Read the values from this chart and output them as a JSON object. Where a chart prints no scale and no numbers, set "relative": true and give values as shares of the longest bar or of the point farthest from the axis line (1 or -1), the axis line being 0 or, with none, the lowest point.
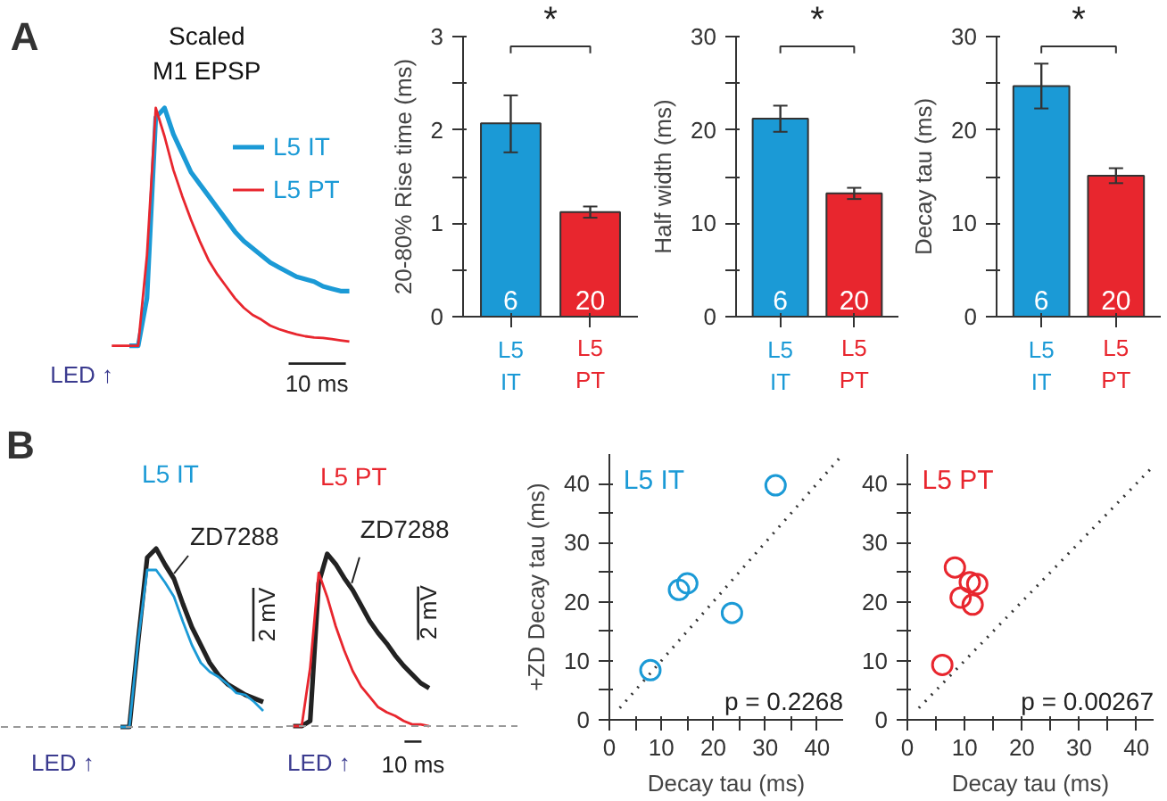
{
  "chart_data": [
    {
      "type": "line",
      "relative": true,
      "title": "Scaled M1 EPSP",
      "legend": "top right",
      "categories": [
        null,
        null,
        null,
        null,
        null,
        null,
        null,
        null,
        null,
        null,
        null,
        null,
        null,
        null,
        null,
        null,
        null,
        null,
        null,
        null,
        null,
        null,
        null,
        null,
        null,
        null,
        null,
        null
      ],
      "series": [
        {
          "name": "L5 IT",
          "color": "#1b9ad6",
          "values": [
            null,
            null,
            0,
            0,
            0.2,
            0.96,
            1.0,
            0.89,
            0.81,
            0.73,
            0.68,
            0.63,
            0.58,
            0.53,
            0.48,
            0.44,
            0.41,
            0.38,
            0.35,
            0.33,
            0.31,
            0.29,
            0.28,
            0.27,
            0.25,
            0.24,
            0.23,
            0.23
          ]
        },
        {
          "name": "L5 PT",
          "color": "#e8262e",
          "values": [
            0,
            0,
            0,
            0,
            0.38,
            1.0,
            0.88,
            0.74,
            0.63,
            0.53,
            0.44,
            0.36,
            0.3,
            0.25,
            0.2,
            0.16,
            0.13,
            0.11,
            0.085,
            0.07,
            0.058,
            0.048,
            0.04,
            0.035,
            0.033,
            0.028,
            0.023,
            0.018
          ]
        }
      ],
      "annotations": [
        "A",
        "LED ↑",
        "10 ms"
      ]
    },
    {
      "type": "bar",
      "categories": [
        "L5 IT",
        "L5 PT"
      ],
      "values": [
        2.07,
        1.12
      ],
      "colors": [
        "#1b9ad6",
        "#e8262e"
      ],
      "errors": [
        [
          1.76,
          2.37
        ],
        [
          1.06,
          1.18
        ]
      ],
      "ylabel": "20-80% Rise time (ms)",
      "ylim": [
        0,
        3
      ],
      "yticks": [
        0,
        {
          "value": 0.5,
          "label": null
        },
        1,
        {
          "value": 1.5,
          "label": null
        },
        2,
        {
          "value": 2.5,
          "label": null
        },
        3
      ],
      "annotations": [
        "*",
        "6",
        "20"
      ]
    },
    {
      "type": "bar",
      "categories": [
        "L5 IT",
        "L5 PT"
      ],
      "values": [
        21.2,
        13.2
      ],
      "colors": [
        "#1b9ad6",
        "#e8262e"
      ],
      "errors": [
        [
          19.8,
          22.6
        ],
        [
          12.6,
          13.8
        ]
      ],
      "ylabel": "Half width (ms)",
      "ylim": [
        0,
        30
      ],
      "yticks": [
        0,
        {
          "value": 5,
          "label": null
        },
        10,
        {
          "value": 15,
          "label": null
        },
        20,
        {
          "value": 25,
          "label": null
        },
        30
      ],
      "annotations": [
        "*",
        "6",
        "20"
      ]
    },
    {
      "type": "bar",
      "categories": [
        "L5 IT",
        "L5 PT"
      ],
      "values": [
        24.7,
        15.1
      ],
      "colors": [
        "#1b9ad6",
        "#e8262e"
      ],
      "errors": [
        [
          22.3,
          27.1
        ],
        [
          14.3,
          15.9
        ]
      ],
      "ylabel": "Decay tau (ms)",
      "ylim": [
        0,
        30
      ],
      "yticks": [
        0,
        {
          "value": 5,
          "label": null
        },
        10,
        {
          "value": 15,
          "label": null
        },
        20,
        {
          "value": 25,
          "label": null
        },
        30
      ],
      "annotations": [
        "*",
        "6",
        "20"
      ]
    },
    {
      "type": "line",
      "relative": true,
      "title": "L5 IT",
      "categories": [
        null,
        null,
        null,
        null,
        null,
        null,
        null,
        null,
        null,
        null,
        null,
        null,
        null,
        null,
        null,
        null,
        null
      ],
      "series": [
        {
          "name": "ZD7288",
          "color": "#222222",
          "values": [
            0,
            0,
            0.49,
            0.95,
            1.0,
            0.91,
            0.83,
            0.69,
            0.56,
            0.46,
            0.36,
            0.29,
            0.24,
            0.21,
            0.18,
            0.16,
            0.14
          ]
        },
        {
          "color": "#1b9ad6",
          "values": [
            0,
            0,
            0.49,
            0.88,
            0.88,
            0.81,
            0.73,
            0.59,
            0.46,
            0.36,
            0.31,
            0.28,
            0.24,
            0.19,
            0.18,
            0.14,
            0.09
          ]
        }
      ],
      "ref_lines": [
        {
          "axis": "y",
          "value": 0,
          "color": "#999999",
          "line_style": "dashed"
        }
      ],
      "annotations": [
        "B",
        "LED ↑",
        "2 mV"
      ]
    },
    {
      "type": "line",
      "relative": true,
      "title": "L5 PT",
      "categories": [
        null,
        null,
        null,
        null,
        null,
        null,
        null,
        null,
        null,
        null,
        null,
        null,
        null,
        null,
        null,
        null,
        null
      ],
      "series": [
        {
          "name": "ZD7288",
          "color": "#222222",
          "values": [
            0,
            0,
            0.03,
            0.83,
            1.0,
            0.94,
            0.86,
            0.79,
            0.7,
            0.61,
            0.54,
            0.48,
            0.41,
            0.35,
            0.3,
            0.25,
            0.22
          ]
        },
        {
          "color": "#e8262e",
          "values": [
            0,
            0,
            0.34,
            0.89,
            0.75,
            0.58,
            0.44,
            0.32,
            0.23,
            0.17,
            0.11,
            0.08,
            0.06,
            0.03,
            0.01,
            0.01,
            0.0
          ]
        }
      ],
      "ref_lines": [
        {
          "axis": "y",
          "value": 0,
          "color": "#999999",
          "line_style": "dashed"
        }
      ],
      "annotations": [
        "LED ↑",
        "2 mV",
        "10 ms"
      ]
    },
    {
      "type": "scatter",
      "marker": "circle",
      "xlim": [
        0,
        45
      ],
      "ylim": [
        0,
        45
      ],
      "xticks": [
        0,
        {
          "value": 5,
          "label": null
        },
        10,
        {
          "value": 15,
          "label": null
        },
        20,
        {
          "value": 25,
          "label": null
        },
        30,
        {
          "value": 35,
          "label": null
        },
        40
      ],
      "yticks": [
        0,
        {
          "value": 5,
          "label": null
        },
        10,
        {
          "value": 15,
          "label": null
        },
        20,
        {
          "value": 25,
          "label": null
        },
        30,
        {
          "value": 35,
          "label": null
        },
        40
      ],
      "xlabel": "Decay tau (ms)",
      "ylabel": "+ZD Decay tau (ms)",
      "series": [
        {
          "name": "L5 IT",
          "color": "#1b9ad6",
          "x": [
            7.9,
            13.4,
            15.0,
            23.6,
            32.0
          ],
          "values": [
            8.4,
            22.0,
            23.1,
            18.1,
            39.7
          ]
        },
        {
          "type": "line",
          "marker": "none",
          "color": "#333333",
          "line_style": "dotted",
          "x": [
            2,
            45
          ],
          "values": [
            2,
            45
          ]
        }
      ],
      "annotations": [
        "p = 0.2268"
      ]
    },
    {
      "type": "scatter",
      "marker": "circle",
      "xlim": [
        0,
        43
      ],
      "ylim": [
        0,
        45
      ],
      "xticks": [
        0,
        {
          "value": 5,
          "label": null
        },
        10,
        {
          "value": 15,
          "label": null
        },
        20,
        {
          "value": 25,
          "label": null
        },
        30,
        {
          "value": 35,
          "label": null
        },
        40
      ],
      "yticks": [
        0,
        {
          "value": 5,
          "label": null
        },
        10,
        {
          "value": 15,
          "label": null
        },
        20,
        {
          "value": 25,
          "label": null
        },
        30,
        {
          "value": 35,
          "label": null
        },
        40
      ],
      "xlabel": "Decay tau (ms)",
      "series": [
        {
          "name": "L5 PT",
          "color": "#e8262e",
          "x": [
            6.1,
            8.3,
            9.3,
            10.9,
            11.4,
            12.2
          ],
          "values": [
            9.3,
            25.8,
            20.7,
            23.3,
            19.5,
            23.0
          ]
        },
        {
          "type": "line",
          "marker": "none",
          "color": "#333333",
          "line_style": "dotted",
          "x": [
            2,
            43
          ],
          "values": [
            2,
            43
          ]
        }
      ],
      "annotations": [
        "p = 0.00267"
      ]
    }
  ]
}
